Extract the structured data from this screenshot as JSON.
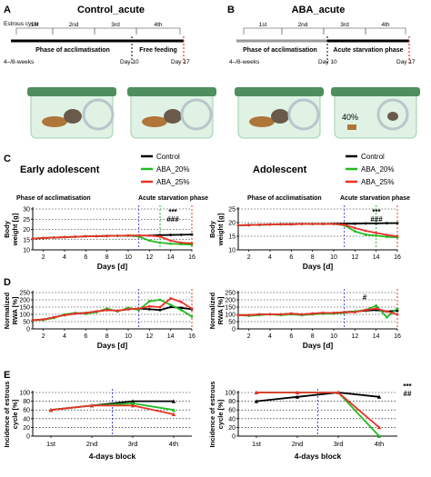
{
  "panels": {
    "A": {
      "letter": "A",
      "title": "Control_acute",
      "timeline_label": "Estrous cycle",
      "ticks": [
        "1st",
        "2nd",
        "3rd",
        "4th"
      ],
      "phase1": "Phase of acclimatisation",
      "phase2": "Free feeding",
      "start": "4–/8-weeks",
      "day10": "Day 10",
      "day17": "Day 17"
    },
    "B": {
      "letter": "B",
      "title": "ABA_acute",
      "ticks": [
        "1st",
        "2nd",
        "3rd",
        "4th"
      ],
      "phase1": "Phase of acclimatisation",
      "phase2": "Acute starvation phase",
      "start": "4–/8-weeks",
      "day10": "Day 10",
      "day17": "Day 17",
      "cage_pct": "40%"
    },
    "C": {
      "letter": "C"
    },
    "D": {
      "letter": "D"
    },
    "E": {
      "letter": "E"
    }
  },
  "legend": {
    "control": "Control",
    "aba20": "ABA_20%",
    "aba25": "ABA_25%"
  },
  "colors": {
    "control": "#000000",
    "aba20": "#22bb22",
    "aba25": "#e8332a",
    "vline_blue": "#4444dd",
    "vline_green": "#22bb22",
    "vline_red": "#e8332a",
    "timeline_green": "#2e9e2e"
  },
  "headings": {
    "early": "Early adolescent",
    "adolescent": "Adolescent"
  },
  "phase_labels": {
    "acclim": "Phase of acclimatisation",
    "starv": "Acute starvation phase"
  },
  "chart_data": [
    {
      "id": "C-left",
      "type": "line",
      "xlabel": "Days [d]",
      "ylabel": "Body weight [g]",
      "xlim": [
        1,
        16
      ],
      "ylim": [
        10,
        30
      ],
      "xticks": [
        2,
        4,
        6,
        8,
        10,
        12,
        14,
        16
      ],
      "yticks": [
        10,
        15,
        20,
        25,
        30
      ],
      "vlines": [
        {
          "x": 11,
          "color": "blue"
        },
        {
          "x": 13,
          "color": "green"
        },
        {
          "x": 16,
          "color": "red"
        }
      ],
      "annotations": [
        "***",
        "###"
      ],
      "series": [
        {
          "name": "Control",
          "key": "control",
          "x": [
            1,
            2,
            3,
            4,
            5,
            6,
            7,
            8,
            9,
            10,
            11,
            12,
            13,
            14,
            15,
            16
          ],
          "y": [
            15.5,
            15.8,
            16.0,
            16.2,
            16.4,
            16.6,
            16.7,
            16.8,
            16.9,
            17.0,
            17.0,
            17.0,
            17.2,
            17.3,
            17.4,
            17.5
          ]
        },
        {
          "name": "ABA_20%",
          "key": "aba20",
          "x": [
            1,
            2,
            3,
            4,
            5,
            6,
            7,
            8,
            9,
            10,
            11,
            12,
            13,
            14,
            15,
            16
          ],
          "y": [
            15.5,
            15.8,
            16.0,
            16.2,
            16.4,
            16.6,
            16.7,
            16.8,
            16.9,
            16.9,
            16.5,
            14.5,
            13.5,
            13.0,
            12.8,
            12.5
          ]
        },
        {
          "name": "ABA_25%",
          "key": "aba25",
          "x": [
            1,
            2,
            3,
            4,
            5,
            6,
            7,
            8,
            9,
            10,
            11,
            12,
            13,
            14,
            15,
            16
          ],
          "y": [
            15.5,
            15.8,
            16.0,
            16.2,
            16.4,
            16.6,
            16.7,
            16.8,
            16.9,
            17.0,
            17.0,
            17.0,
            16.5,
            14.5,
            13.5,
            13.2
          ]
        }
      ]
    },
    {
      "id": "C-right",
      "type": "line",
      "xlabel": "Days [d]",
      "ylabel": "Body weight [g]",
      "xlim": [
        1,
        16
      ],
      "ylim": [
        10,
        25
      ],
      "xticks": [
        2,
        4,
        6,
        8,
        10,
        12,
        14,
        16
      ],
      "yticks": [
        10,
        15,
        20,
        25
      ],
      "vlines": [
        {
          "x": 11,
          "color": "blue"
        },
        {
          "x": 14,
          "color": "green"
        },
        {
          "x": 16,
          "color": "red"
        }
      ],
      "annotations": [
        "***",
        "###"
      ],
      "series": [
        {
          "name": "Control",
          "key": "control",
          "x": [
            1,
            2,
            3,
            4,
            5,
            6,
            7,
            8,
            9,
            10,
            11,
            12,
            13,
            14,
            15,
            16
          ],
          "y": [
            19.0,
            19.1,
            19.2,
            19.3,
            19.4,
            19.4,
            19.5,
            19.5,
            19.5,
            19.6,
            19.6,
            19.6,
            19.7,
            19.7,
            19.8,
            19.8
          ]
        },
        {
          "name": "ABA_20%",
          "key": "aba20",
          "x": [
            1,
            2,
            3,
            4,
            5,
            6,
            7,
            8,
            9,
            10,
            11,
            12,
            13,
            14,
            15,
            16
          ],
          "y": [
            19.0,
            19.1,
            19.2,
            19.3,
            19.4,
            19.4,
            19.5,
            19.5,
            19.5,
            19.5,
            19.0,
            16.8,
            15.6,
            15.2,
            14.8,
            14.6
          ]
        },
        {
          "name": "ABA_25%",
          "key": "aba25",
          "x": [
            1,
            2,
            3,
            4,
            5,
            6,
            7,
            8,
            9,
            10,
            11,
            12,
            13,
            14,
            15,
            16
          ],
          "y": [
            19.0,
            19.1,
            19.2,
            19.3,
            19.4,
            19.4,
            19.5,
            19.5,
            19.5,
            19.5,
            19.2,
            18.0,
            17.0,
            16.2,
            15.5,
            15.0
          ]
        }
      ]
    },
    {
      "id": "D-left",
      "type": "line",
      "xlabel": "Days [d]",
      "ylabel": "Normalized RWA [%]",
      "xlim": [
        1,
        16
      ],
      "ylim": [
        0,
        250
      ],
      "xticks": [
        2,
        4,
        6,
        8,
        10,
        12,
        14,
        16
      ],
      "yticks": [
        0,
        50,
        100,
        150,
        200,
        250
      ],
      "vlines": [
        {
          "x": 11,
          "color": "blue"
        },
        {
          "x": 16,
          "color": "red"
        }
      ],
      "annotations": [],
      "series": [
        {
          "name": "Control",
          "key": "control",
          "x": [
            1,
            2,
            3,
            4,
            5,
            6,
            7,
            8,
            9,
            10,
            11,
            12,
            13,
            14,
            15,
            16
          ],
          "y": [
            60,
            65,
            80,
            95,
            105,
            110,
            120,
            130,
            125,
            135,
            140,
            135,
            130,
            150,
            145,
            135
          ]
        },
        {
          "name": "ABA_20%",
          "key": "aba20",
          "x": [
            1,
            2,
            3,
            4,
            5,
            6,
            7,
            8,
            9,
            10,
            11,
            12,
            13,
            14,
            15,
            16
          ],
          "y": [
            60,
            62,
            75,
            100,
            110,
            105,
            115,
            140,
            120,
            145,
            130,
            190,
            200,
            165,
            130,
            85
          ]
        },
        {
          "name": "ABA_25%",
          "key": "aba25",
          "x": [
            1,
            2,
            3,
            4,
            5,
            6,
            7,
            8,
            9,
            10,
            11,
            12,
            13,
            14,
            15,
            16
          ],
          "y": [
            60,
            65,
            80,
            95,
            105,
            110,
            120,
            130,
            125,
            135,
            140,
            155,
            150,
            210,
            185,
            140
          ]
        }
      ]
    },
    {
      "id": "D-right",
      "type": "line",
      "xlabel": "Days [d]",
      "ylabel": "Normalized RWA [%]",
      "xlim": [
        1,
        16
      ],
      "ylim": [
        0,
        250
      ],
      "xticks": [
        2,
        4,
        6,
        8,
        10,
        12,
        14,
        16
      ],
      "yticks": [
        0,
        50,
        100,
        150,
        200,
        250
      ],
      "vlines": [
        {
          "x": 11,
          "color": "blue"
        },
        {
          "x": 16,
          "color": "red"
        }
      ],
      "annotations": [
        "#"
      ],
      "series": [
        {
          "name": "Control",
          "key": "control",
          "x": [
            1,
            2,
            3,
            4,
            5,
            6,
            7,
            8,
            9,
            10,
            11,
            12,
            13,
            14,
            15,
            16
          ],
          "y": [
            95,
            95,
            100,
            100,
            100,
            105,
            100,
            105,
            110,
            110,
            115,
            120,
            125,
            130,
            120,
            125
          ]
        },
        {
          "name": "ABA_20%",
          "key": "aba20",
          "x": [
            1,
            2,
            3,
            4,
            5,
            6,
            7,
            8,
            9,
            10,
            11,
            12,
            13,
            14,
            15,
            16
          ],
          "y": [
            95,
            90,
            95,
            100,
            95,
            100,
            95,
            100,
            105,
            105,
            110,
            120,
            130,
            160,
            80,
            140
          ]
        },
        {
          "name": "ABA_25%",
          "key": "aba25",
          "x": [
            1,
            2,
            3,
            4,
            5,
            6,
            7,
            8,
            9,
            10,
            11,
            12,
            13,
            14,
            15,
            16
          ],
          "y": [
            95,
            95,
            100,
            100,
            100,
            105,
            100,
            105,
            110,
            110,
            115,
            115,
            130,
            140,
            120,
            100
          ]
        }
      ]
    },
    {
      "id": "E-left",
      "type": "line",
      "xlabel": "4-days block",
      "ylabel": "Incidence of estrous cycle [%]",
      "categories": [
        "1st",
        "2nd",
        "3rd",
        "4th"
      ],
      "ylim": [
        0,
        100
      ],
      "yticks": [
        0,
        20,
        40,
        60,
        80,
        100
      ],
      "vlines": [
        {
          "x": 2.5,
          "color": "blue"
        }
      ],
      "annotations": [],
      "series": [
        {
          "name": "Control",
          "key": "control",
          "values": [
            60,
            70,
            80,
            80
          ]
        },
        {
          "name": "ABA_20%",
          "key": "aba20",
          "values": [
            60,
            70,
            75,
            60
          ]
        },
        {
          "name": "ABA_25%",
          "key": "aba25",
          "values": [
            60,
            70,
            70,
            50
          ]
        }
      ]
    },
    {
      "id": "E-right",
      "type": "line",
      "xlabel": "4-days block",
      "ylabel": "Incidence of estrous cycle [%]",
      "categories": [
        "1st",
        "2nd",
        "3rd",
        "4th"
      ],
      "ylim": [
        0,
        100
      ],
      "yticks": [
        0,
        20,
        40,
        60,
        80,
        100
      ],
      "vlines": [
        {
          "x": 2.5,
          "color": "blue"
        }
      ],
      "annotations": [
        "***",
        "##"
      ],
      "series": [
        {
          "name": "Control",
          "key": "control",
          "values": [
            80,
            90,
            100,
            90
          ]
        },
        {
          "name": "ABA_20%",
          "key": "aba20",
          "values": [
            100,
            100,
            100,
            0
          ]
        },
        {
          "name": "ABA_25%",
          "key": "aba25",
          "values": [
            100,
            100,
            100,
            20
          ]
        }
      ]
    }
  ]
}
